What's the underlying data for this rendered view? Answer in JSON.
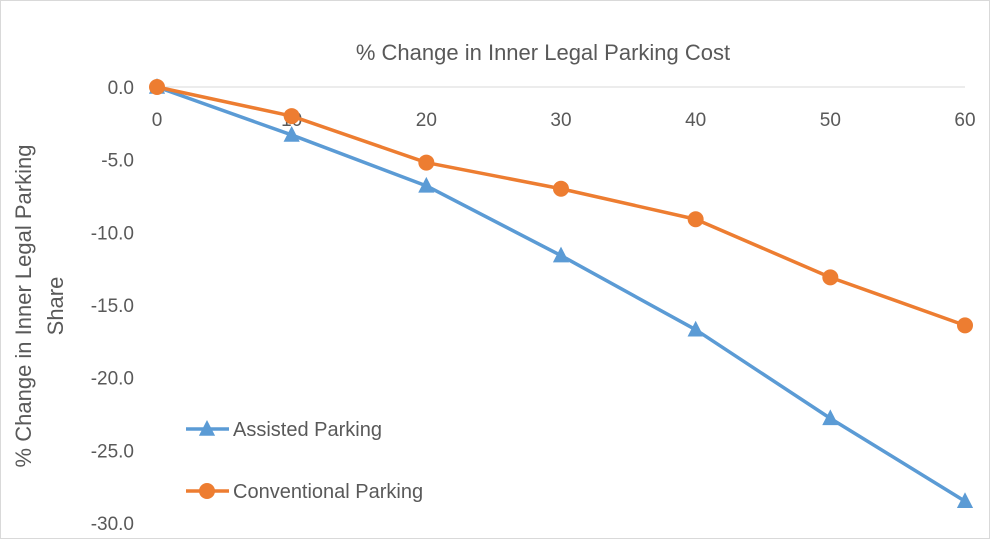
{
  "chart_data": {
    "type": "line",
    "title": "% Change in Inner Legal Parking Cost",
    "xlabel": "",
    "ylabel_lines": [
      "% Change in Inner Legal Parking",
      "Share"
    ],
    "x": [
      0,
      10,
      20,
      30,
      40,
      50,
      60
    ],
    "x_tick_labels": [
      "0",
      "10",
      "20",
      "30",
      "40",
      "50",
      "60"
    ],
    "y_tick_labels": [
      "0.0",
      "-5.0",
      "-10.0",
      "-15.0",
      "-20.0",
      "-25.0",
      "-30.0"
    ],
    "xlim": [
      0,
      60
    ],
    "ylim": [
      -30,
      0
    ],
    "grid": false,
    "legend_position": "bottom-left",
    "series": [
      {
        "name": "Assisted Parking",
        "color": "#5b9bd5",
        "marker": "triangle",
        "values": [
          0.0,
          -3.3,
          -6.8,
          -11.6,
          -16.7,
          -22.8,
          -28.5
        ]
      },
      {
        "name": "Conventional Parking",
        "color": "#ed7d31",
        "marker": "circle",
        "values": [
          0.0,
          -2.0,
          -5.2,
          -7.0,
          -9.1,
          -13.1,
          -16.4
        ]
      }
    ]
  }
}
